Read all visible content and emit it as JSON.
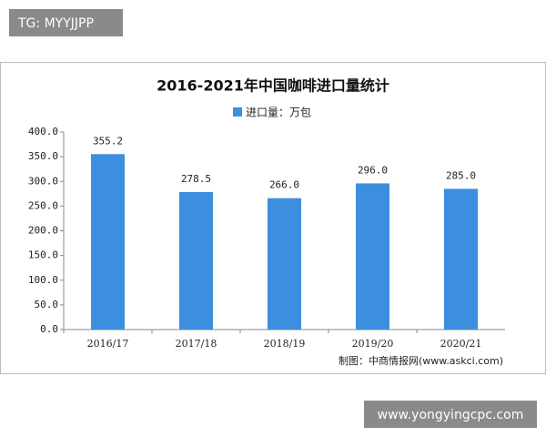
{
  "overlay_top": "TG: MYYJJPP",
  "overlay_bottom": "www.yongyingcpc.com",
  "chart_data": {
    "type": "bar",
    "title": "2016-2021年中国咖啡进口量统计",
    "source": "制图：中商情报网(www.askci.com)",
    "categories": [
      "2016/17",
      "2017/18",
      "2018/19",
      "2019/20",
      "2020/21"
    ],
    "series": [
      {
        "name": "进口量：万包",
        "color": "#3c8fdf",
        "values": [
          355.2,
          278.5,
          266.0,
          296.0,
          285.0
        ],
        "value_labels": [
          "355.2",
          "278.5",
          "266.0",
          "296.0",
          "285.0"
        ]
      }
    ],
    "ylim": [
      0,
      400
    ],
    "yticks": [
      {
        "value": 0,
        "label": "0.0"
      },
      {
        "value": 50,
        "label": "50.0"
      },
      {
        "value": 100,
        "label": "100.0"
      },
      {
        "value": 150,
        "label": "150.0"
      },
      {
        "value": 200,
        "label": "200.0"
      },
      {
        "value": 250,
        "label": "250.0"
      },
      {
        "value": 300,
        "label": "300.0"
      },
      {
        "value": 350,
        "label": "350.0"
      },
      {
        "value": 400,
        "label": "400.0"
      }
    ],
    "legend": "top"
  }
}
